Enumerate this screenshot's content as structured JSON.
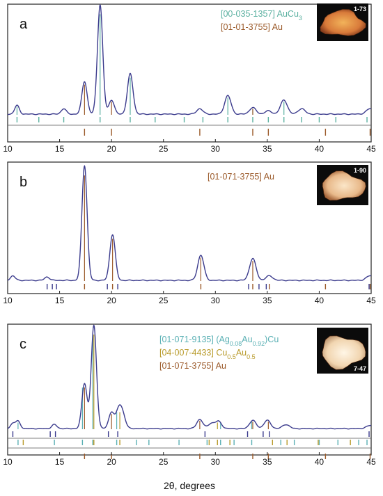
{
  "colors": {
    "pattern": "#3a3a8c",
    "au": "#9b5a2a",
    "aucu3": "#5ab0a0",
    "agau": "#5ab0b4",
    "cuau": "#b89a2a",
    "frame": "#222222"
  },
  "xlabel": "2θ, degrees",
  "chart_data": [
    {
      "type": "line",
      "panel": "a",
      "sample_label": "1-73",
      "xlim": [
        10,
        45
      ],
      "x_ticks": [
        10,
        15,
        20,
        25,
        30,
        35,
        40,
        45
      ],
      "legend": [
        {
          "code": "[00-035-1357]",
          "phase": "AuCu",
          "sub": "3",
          "color": "aucu3"
        },
        {
          "code": "[01-01-3755]",
          "phase": "Au",
          "sub": "",
          "color": "au"
        }
      ],
      "peaks": [
        {
          "x": 10.9,
          "h": 0.08
        },
        {
          "x": 15.4,
          "h": 0.05
        },
        {
          "x": 17.4,
          "h": 0.3
        },
        {
          "x": 18.9,
          "h": 1.0
        },
        {
          "x": 20.0,
          "h": 0.13
        },
        {
          "x": 21.8,
          "h": 0.37
        },
        {
          "x": 28.5,
          "h": 0.05
        },
        {
          "x": 31.2,
          "h": 0.17
        },
        {
          "x": 33.6,
          "h": 0.06
        },
        {
          "x": 35.1,
          "h": 0.03
        },
        {
          "x": 36.6,
          "h": 0.13
        },
        {
          "x": 38.3,
          "h": 0.05
        },
        {
          "x": 44.9,
          "h": 0.05
        }
      ],
      "ref_series": [
        {
          "phase": "AuCu3",
          "color": "aucu3",
          "x": [
            10.9,
            13.0,
            15.4,
            18.9,
            21.8,
            24.2,
            27.0,
            28.8,
            31.2,
            33.6,
            35.1,
            36.6,
            38.3,
            40.0,
            41.6,
            44.6
          ]
        },
        {
          "phase": "Au",
          "color": "au",
          "x": [
            17.4,
            20.0,
            28.5,
            33.6,
            35.1,
            40.6,
            44.9
          ]
        }
      ]
    },
    {
      "type": "line",
      "panel": "b",
      "sample_label": "1-90",
      "xlim": [
        10,
        45
      ],
      "x_ticks": [
        10,
        15,
        20,
        25,
        30,
        35,
        40,
        45
      ],
      "legend": [
        {
          "code": "[01-071-3755]",
          "phase": "Au",
          "sub": "",
          "color": "au"
        }
      ],
      "peaks": [
        {
          "x": 10.5,
          "h": 0.04
        },
        {
          "x": 13.8,
          "h": 0.03
        },
        {
          "x": 17.4,
          "h": 1.0
        },
        {
          "x": 20.1,
          "h": 0.4
        },
        {
          "x": 28.6,
          "h": 0.22
        },
        {
          "x": 33.6,
          "h": 0.19
        },
        {
          "x": 35.2,
          "h": 0.04
        },
        {
          "x": 44.9,
          "h": 0.04
        }
      ],
      "ref_series": [
        {
          "phase": "Au",
          "color": "au",
          "x": [
            17.4,
            20.1,
            28.6,
            33.6,
            35.2,
            40.6,
            44.9
          ]
        },
        {
          "phase": "extra",
          "color": "pattern",
          "x": [
            13.8,
            14.3,
            14.7,
            19.6,
            20.6,
            33.2,
            34.2,
            34.9,
            44.8
          ]
        }
      ]
    },
    {
      "type": "line",
      "panel": "c",
      "sample_label": "7-47",
      "xlim": [
        10,
        45
      ],
      "x_ticks": [
        10,
        15,
        20,
        25,
        30,
        35,
        40,
        45
      ],
      "legend": [
        {
          "code": "[01-071-9135]",
          "phase_parts": [
            "(Ag",
            "0.08",
            "Au",
            "0.92",
            ")Cu"
          ],
          "color": "agau"
        },
        {
          "code": "[04-007-4433]",
          "phase_parts": [
            "Cu",
            "0.5",
            "Au",
            "0.5"
          ],
          "color": "cuau"
        },
        {
          "code": "[01-071-3755]",
          "phase_parts": [
            "Au"
          ],
          "color": "au"
        }
      ],
      "peaks": [
        {
          "x": 10.5,
          "h": 0.05
        },
        {
          "x": 11.0,
          "h": 0.07
        },
        {
          "x": 14.5,
          "h": 0.04
        },
        {
          "x": 17.4,
          "h": 0.44
        },
        {
          "x": 18.3,
          "h": 1.0
        },
        {
          "x": 20.0,
          "h": 0.16
        },
        {
          "x": 20.7,
          "h": 0.18
        },
        {
          "x": 21.1,
          "h": 0.12
        },
        {
          "x": 28.5,
          "h": 0.09
        },
        {
          "x": 29.6,
          "h": 0.05
        },
        {
          "x": 30.3,
          "h": 0.07
        },
        {
          "x": 33.6,
          "h": 0.08
        },
        {
          "x": 35.0,
          "h": 0.08
        },
        {
          "x": 36.8,
          "h": 0.04
        },
        {
          "x": 44.9,
          "h": 0.03
        }
      ],
      "ref_series": [
        {
          "phase": "extra",
          "color": "pattern",
          "x": [
            10.5,
            14.1,
            14.6,
            19.7,
            20.6,
            29.0,
            33.1,
            34.6,
            35.2,
            44.8
          ]
        },
        {
          "phase": "(Ag0.08Au0.92)Cu",
          "color": "agau",
          "x": [
            11.0,
            14.5,
            17.2,
            18.2,
            20.5,
            22.4,
            23.6,
            26.5,
            29.2,
            30.5,
            31.8,
            33.5,
            36.3,
            37.6,
            40.0,
            41.8,
            43.8,
            44.6
          ]
        },
        {
          "phase": "Cu0.5Au0.5",
          "color": "cuau",
          "x": [
            11.5,
            18.3,
            20.8,
            29.4,
            30.2,
            31.4,
            35.5,
            36.9,
            39.9,
            43.0
          ]
        },
        {
          "phase": "Au",
          "color": "au",
          "x": [
            17.4,
            20.0,
            28.5,
            33.6,
            35.1,
            40.6,
            44.9
          ]
        }
      ]
    }
  ]
}
